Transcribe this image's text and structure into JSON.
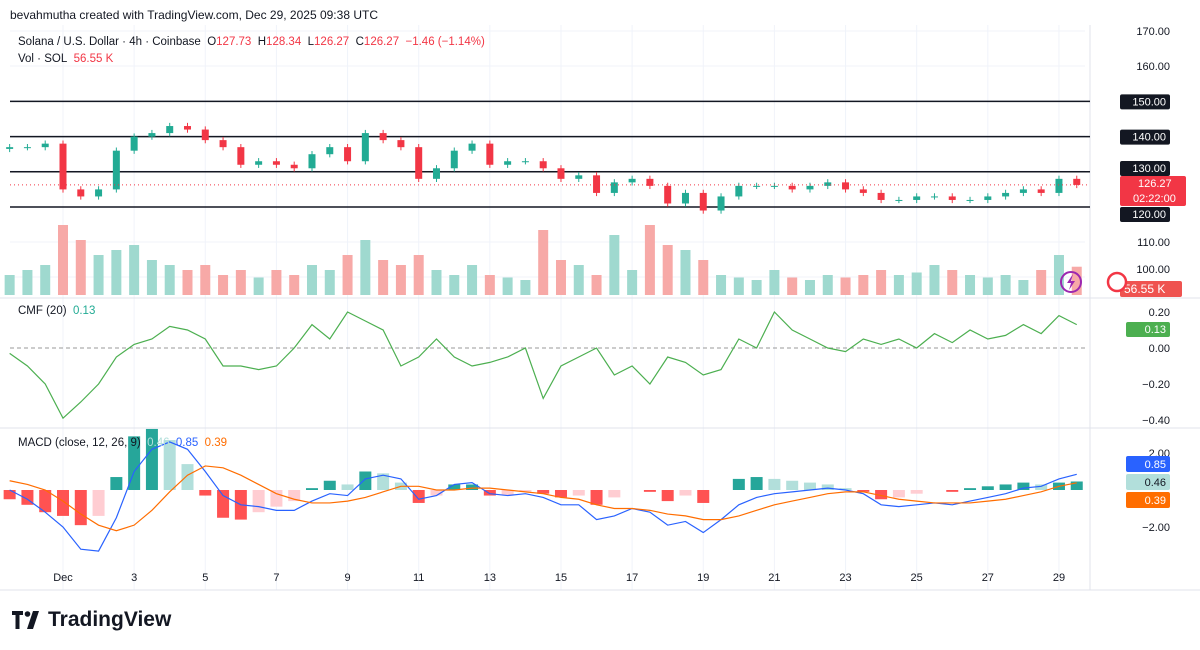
{
  "credit": "bevahmutha created with TradingView.com, Dec 29, 2025 09:38 UTC",
  "symbol": {
    "title": "Solana / U.S. Dollar · 4h · Coinbase",
    "o_label": "O",
    "o": "127.73",
    "h_label": "H",
    "h": "128.34",
    "l_label": "L",
    "l": "126.27",
    "c_label": "C",
    "c": "126.27",
    "change": "−1.46 (−1.14%)",
    "vol_label": "Vol · SOL",
    "vol": "56.55 K"
  },
  "price_axis": [
    "170.00",
    "160.00",
    "150.00",
    "140.00",
    "130.00",
    "120.00",
    "110.00",
    "100.00"
  ],
  "price_tag": {
    "value": "126.27",
    "countdown": "02:22:00"
  },
  "volume_tag": "56.55 K",
  "cmf": {
    "label": "CMF (20)",
    "value": "0.13",
    "axis": [
      "0.20",
      "0.00",
      "−0.20",
      "−0.40"
    ]
  },
  "macd": {
    "label": "MACD (close, 12, 26, 9)",
    "hist": "0.46",
    "macd": "0.85",
    "signal": "0.39",
    "axis": [
      "2.00",
      "−2.00"
    ]
  },
  "x_labels": [
    "Dec",
    "3",
    "5",
    "7",
    "9",
    "11",
    "13",
    "15",
    "17",
    "19",
    "21",
    "23",
    "25",
    "27",
    "29"
  ],
  "brand": "TradingView",
  "colors": {
    "up": "#22ab94",
    "down": "#f23645",
    "cmf": "#4caf50",
    "macd": "#2962ff",
    "signal": "#ff6d00"
  },
  "chart_data": {
    "type": "candlestick",
    "interval": "12h samples (approx.)",
    "start": "Nov 29 12:00",
    "levels": [
      150,
      140,
      130,
      120
    ],
    "ylim": [
      100,
      170
    ],
    "close": [
      137,
      137,
      138,
      125,
      123,
      125,
      136,
      140,
      141,
      143,
      142,
      139,
      137,
      132,
      133,
      132,
      131,
      135,
      137,
      133,
      141,
      139,
      137,
      128,
      131,
      136,
      138,
      132,
      133,
      133,
      131,
      128,
      129,
      124,
      127,
      128,
      126,
      121,
      124,
      119,
      123,
      126,
      126,
      126,
      125,
      126,
      127,
      125,
      124,
      122,
      122,
      123,
      123,
      122,
      122,
      123,
      124,
      125,
      124,
      128,
      126.27
    ],
    "volume_k": [
      40,
      50,
      60,
      140,
      110,
      80,
      90,
      100,
      70,
      60,
      50,
      60,
      40,
      50,
      35,
      50,
      40,
      60,
      50,
      80,
      110,
      70,
      60,
      80,
      50,
      40,
      60,
      40,
      35,
      30,
      130,
      70,
      60,
      40,
      120,
      50,
      140,
      100,
      90,
      70,
      40,
      35,
      30,
      50,
      35,
      30,
      40,
      35,
      40,
      50,
      40,
      45,
      60,
      50,
      40,
      35,
      40,
      30,
      50,
      80,
      56.55
    ],
    "cmf": [
      -0.03,
      -0.1,
      -0.2,
      -0.39,
      -0.3,
      -0.2,
      -0.05,
      0.02,
      0.05,
      0.12,
      0.1,
      0.05,
      -0.1,
      -0.1,
      -0.12,
      -0.1,
      0.0,
      0.13,
      0.05,
      0.2,
      0.15,
      0.1,
      -0.1,
      -0.05,
      0.05,
      -0.05,
      -0.1,
      -0.08,
      -0.05,
      0.0,
      -0.28,
      -0.1,
      -0.05,
      0.0,
      -0.15,
      -0.1,
      -0.2,
      -0.05,
      -0.08,
      -0.15,
      -0.12,
      0.05,
      0.0,
      0.2,
      0.1,
      0.05,
      0.0,
      -0.02,
      0.05,
      0.02,
      0.05,
      0.0,
      0.08,
      0.03,
      0.1,
      0.05,
      0.07,
      0.13,
      0.08,
      0.18,
      0.13
    ],
    "macd": [
      0,
      -0.5,
      -1.2,
      -2,
      -3.2,
      -3.3,
      -1.5,
      1.0,
      2.2,
      2.6,
      2.2,
      1.0,
      -0.3,
      -0.8,
      -0.9,
      -1.1,
      -1.1,
      -0.6,
      -0.2,
      -0.3,
      0.6,
      0.8,
      0.6,
      -0.5,
      -0.3,
      0.3,
      0.4,
      -0.2,
      -0.3,
      -0.2,
      -0.4,
      -0.8,
      -0.8,
      -1.6,
      -1.4,
      -1.0,
      -1.2,
      -1.9,
      -1.7,
      -2.3,
      -1.6,
      -0.8,
      -0.4,
      -0.2,
      -0.1,
      0,
      0.1,
      0,
      -0.2,
      -0.8,
      -0.9,
      -0.8,
      -0.7,
      -0.8,
      -0.6,
      -0.4,
      -0.2,
      0.1,
      0.2,
      0.6,
      0.85
    ],
    "signal": [
      0.5,
      0.3,
      0,
      -0.6,
      -1.3,
      -1.9,
      -2.2,
      -1.9,
      -1.1,
      -0.1,
      0.8,
      1.3,
      1.2,
      0.8,
      0.3,
      -0.2,
      -0.5,
      -0.7,
      -0.7,
      -0.6,
      -0.4,
      -0.1,
      0.2,
      0.2,
      0.0,
      0.0,
      0.1,
      0.1,
      0.0,
      -0.1,
      -0.2,
      -0.4,
      -0.5,
      -0.8,
      -1.0,
      -1.0,
      -1.1,
      -1.3,
      -1.4,
      -1.6,
      -1.6,
      -1.4,
      -1.1,
      -0.8,
      -0.6,
      -0.4,
      -0.2,
      -0.1,
      -0.1,
      -0.3,
      -0.5,
      -0.6,
      -0.7,
      -0.7,
      -0.7,
      -0.6,
      -0.5,
      -0.3,
      -0.1,
      0.2,
      0.39
    ]
  }
}
